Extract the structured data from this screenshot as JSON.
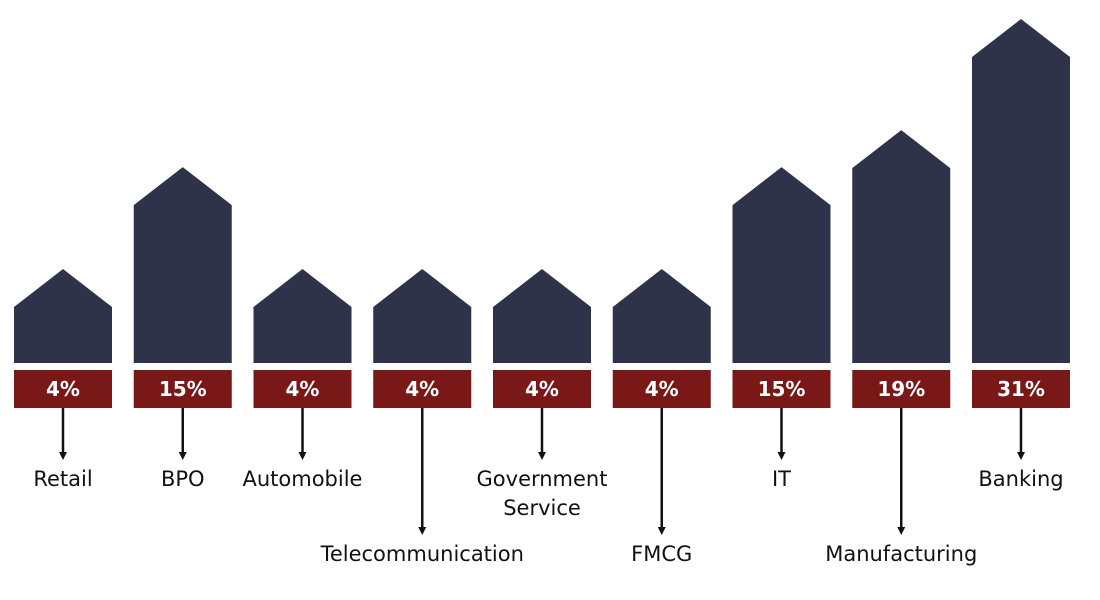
{
  "chart_data": {
    "type": "bar",
    "categories": [
      "Retail",
      "BPO",
      "Automobile",
      "Telecommunication",
      "Government Service",
      "FMCG",
      "IT",
      "Manufacturing",
      "Banking"
    ],
    "category_lines": [
      [
        "Retail"
      ],
      [
        "BPO"
      ],
      [
        "Automobile"
      ],
      [
        "Telecommunication"
      ],
      [
        "Government",
        "Service"
      ],
      [
        "FMCG"
      ],
      [
        "IT"
      ],
      [
        "Manufacturing"
      ],
      [
        "Banking"
      ]
    ],
    "values": [
      4,
      15,
      4,
      4,
      4,
      4,
      15,
      19,
      31
    ],
    "value_labels": [
      "4%",
      "15%",
      "4%",
      "4%",
      "4%",
      "4%",
      "15%",
      "19%",
      "31%"
    ],
    "label_level": [
      "high",
      "high",
      "high",
      "low",
      "high",
      "low",
      "high",
      "low",
      "high"
    ],
    "unit": "%",
    "colors": {
      "bar": "#2e3349",
      "label_box": "#7a1717",
      "value_text": "#ffffff",
      "category_text": "#111111",
      "arrow": "#111111"
    },
    "title": "",
    "xlabel": "",
    "ylabel": "",
    "grid": false,
    "legend": "none"
  }
}
